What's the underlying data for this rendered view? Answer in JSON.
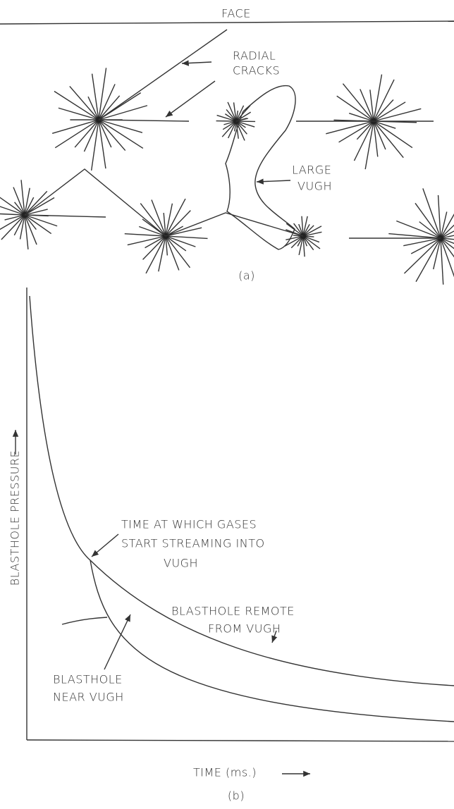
{
  "panel_a": {
    "face_label": "FACE",
    "annotations": [
      {
        "lines": [
          "RADIAL",
          "CRACKS"
        ]
      },
      {
        "lines": [
          "LARGE",
          "VUGH"
        ]
      }
    ],
    "caption": "(a)"
  },
  "panel_b": {
    "y_axis_label": "BLASTHOLE PRESSURE",
    "x_axis_label": "TIME (ms.)",
    "annotations": [
      {
        "lines": [
          "TIME AT WHICH GASES",
          "START STREAMING INTO",
          "VUGH"
        ]
      },
      {
        "lines": [
          "BLASTHOLE REMOTE",
          "FROM VUGH"
        ]
      },
      {
        "lines": [
          "BLASTHOLE",
          "NEAR VUGH"
        ]
      }
    ],
    "caption": "(b)"
  }
}
